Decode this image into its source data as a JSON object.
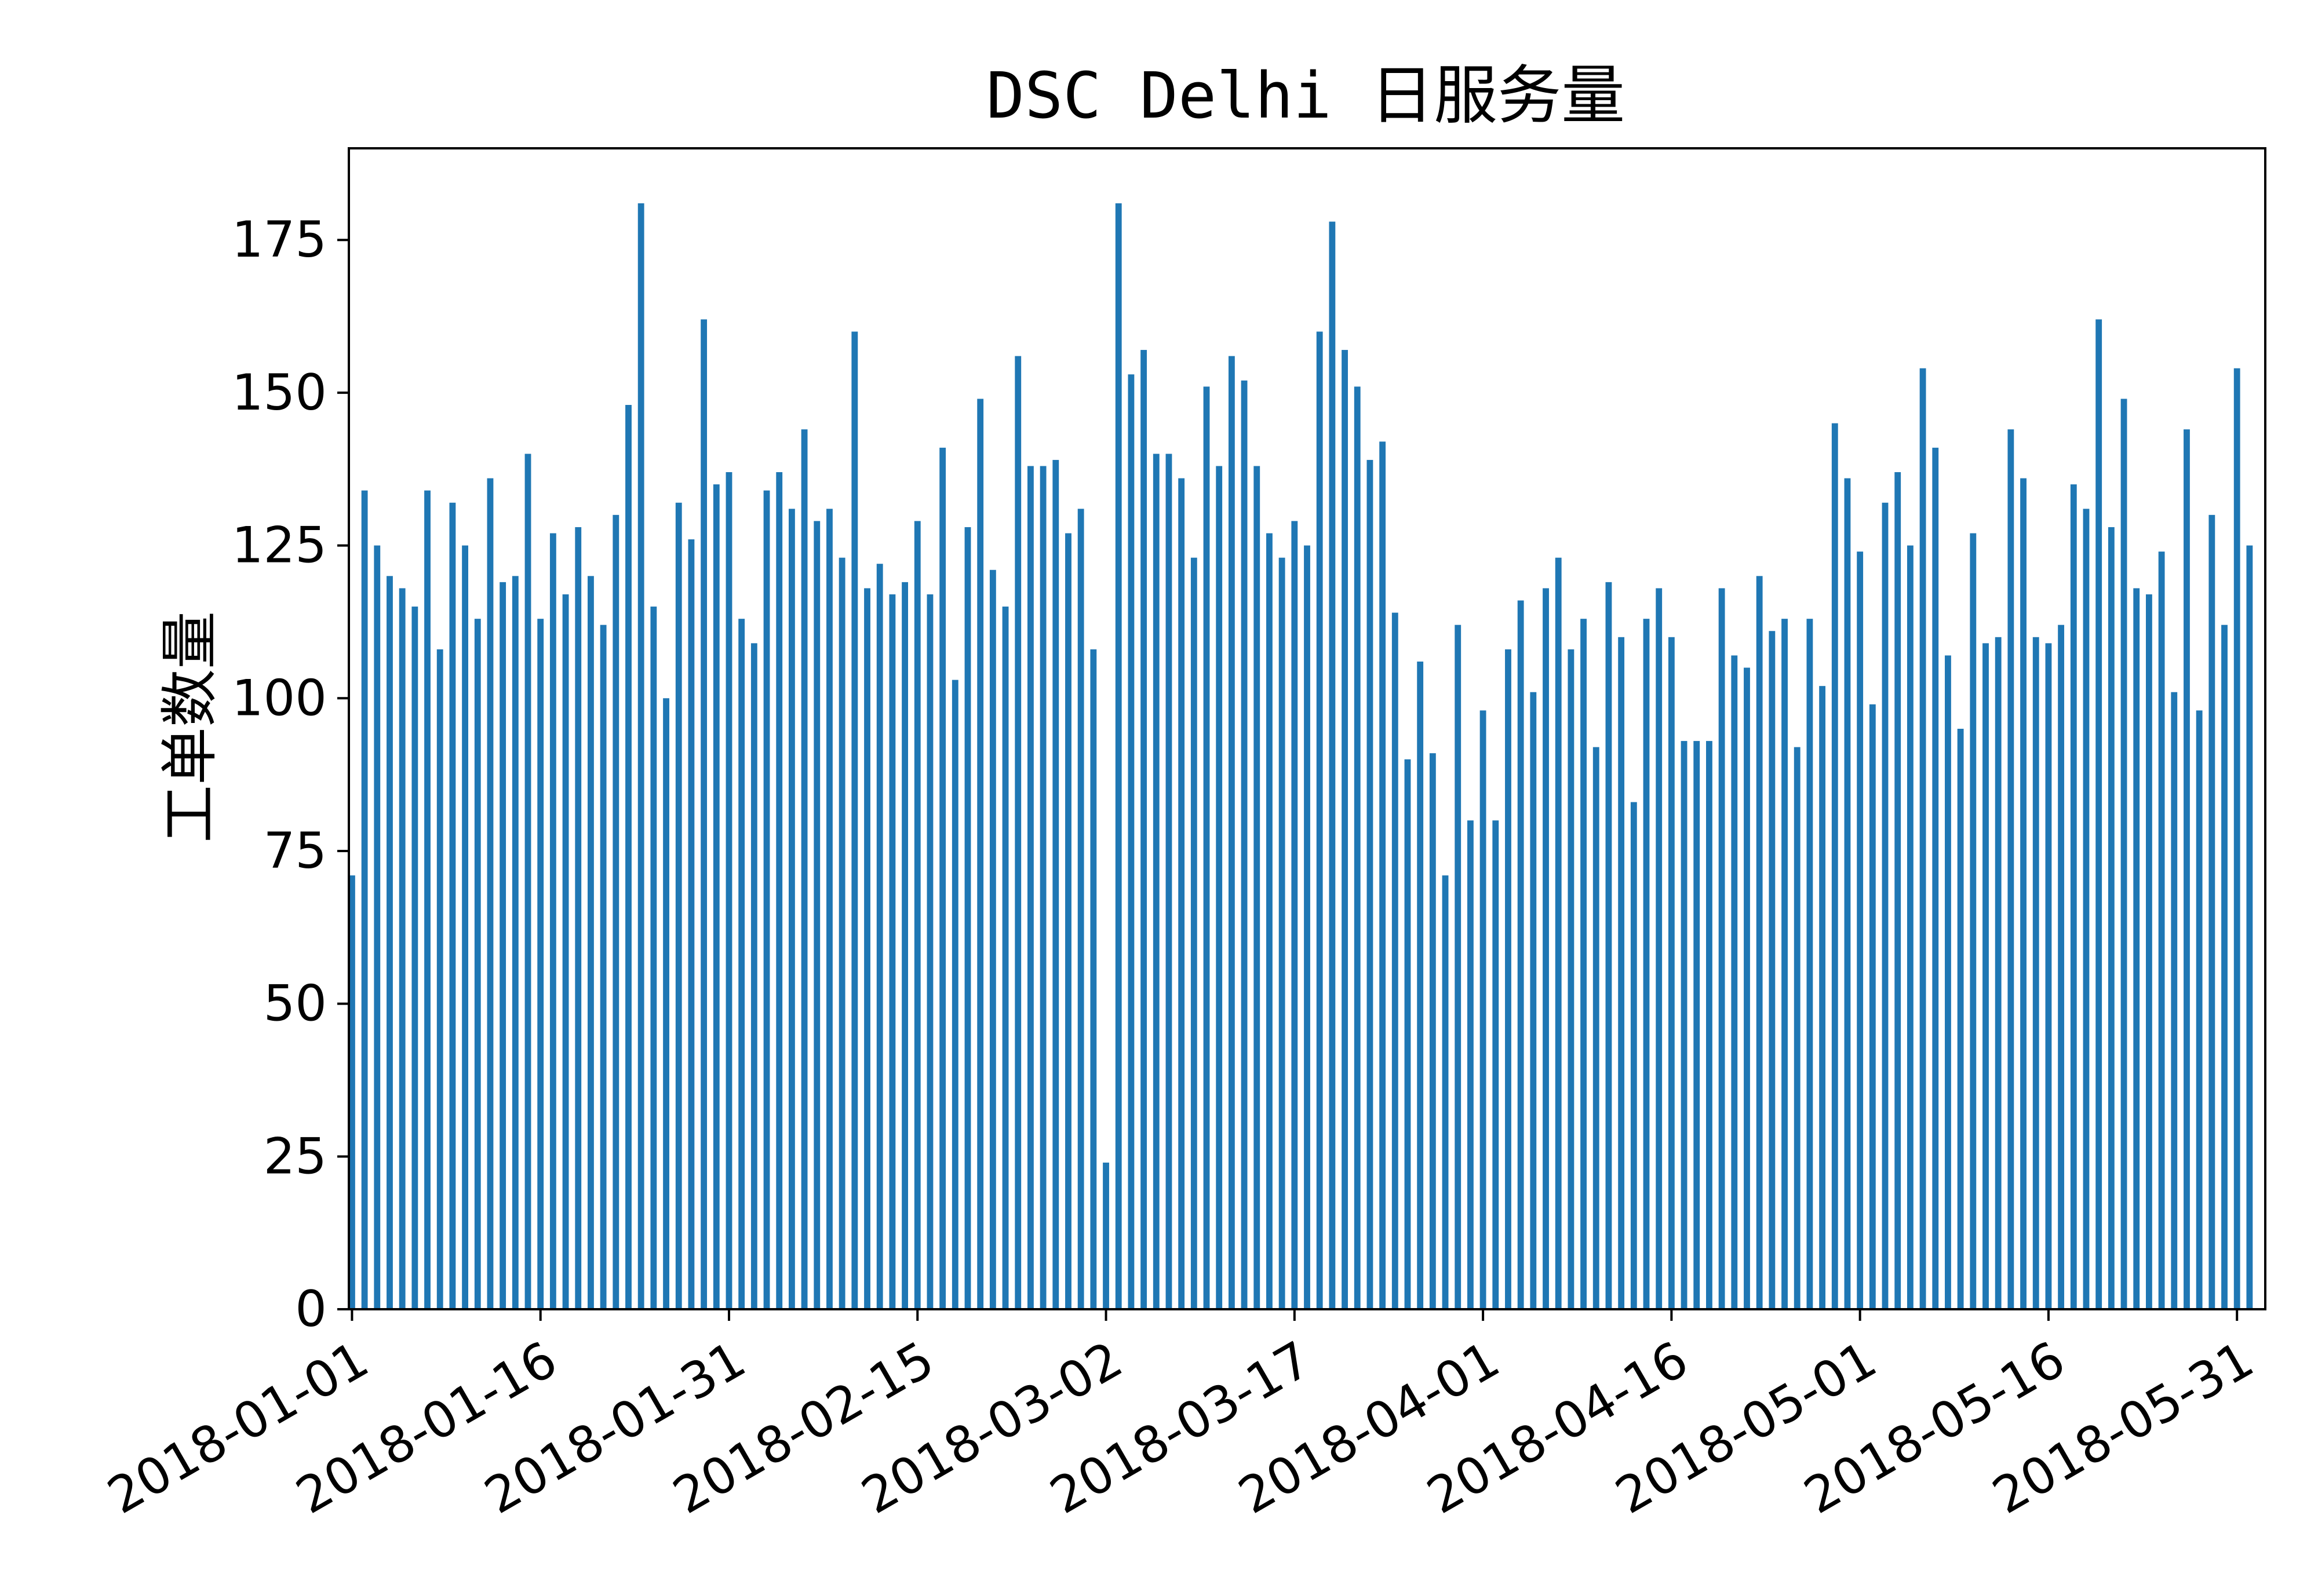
{
  "chart_data": {
    "type": "bar",
    "title": "DSC Delhi 日服务量",
    "xlabel": "",
    "ylabel": "工单数量",
    "ylim": [
      0,
      190
    ],
    "yticks": [
      0,
      25,
      50,
      75,
      100,
      125,
      150,
      175
    ],
    "x_start": "2018-01-01",
    "xtick_labels": [
      "2018-01-01",
      "2018-01-16",
      "2018-01-31",
      "2018-02-15",
      "2018-03-02",
      "2018-03-17",
      "2018-04-01",
      "2018-04-16",
      "2018-05-01",
      "2018-05-16",
      "2018-05-31"
    ],
    "grid": false,
    "legend": "none",
    "bar_color": "#1f77b4",
    "series": [
      {
        "values": [
          71,
          134,
          125,
          120,
          118,
          115,
          134,
          108,
          132,
          125,
          113,
          136,
          119,
          120,
          140,
          113,
          127,
          117,
          128,
          120,
          112,
          130,
          148,
          181,
          115,
          100,
          132,
          126,
          162,
          135,
          137,
          113,
          109,
          134,
          137,
          131,
          144,
          129,
          131,
          123,
          160,
          118,
          122,
          117,
          119,
          129,
          117,
          141,
          103,
          128,
          149,
          121,
          115,
          156,
          138,
          138,
          139,
          127,
          131,
          108,
          24,
          181,
          153,
          157,
          140,
          140,
          136,
          123,
          151,
          138,
          156,
          152,
          138,
          127,
          123,
          129,
          125,
          160,
          178,
          157,
          151,
          139,
          142,
          114,
          90,
          106,
          91,
          71,
          112,
          80,
          98,
          80,
          108,
          116,
          101,
          118,
          123,
          108,
          113,
          92,
          119,
          110,
          83,
          113,
          118,
          110,
          93,
          93,
          93,
          118,
          107,
          105,
          120,
          111,
          113,
          92,
          113,
          102,
          145,
          136,
          124,
          99,
          132,
          137,
          125,
          154,
          141,
          107,
          95,
          127,
          109,
          110,
          144,
          136,
          110,
          109,
          112,
          135,
          131,
          162,
          128,
          149,
          118,
          117,
          124,
          101,
          144,
          98,
          130,
          112,
          154,
          125
        ]
      }
    ]
  }
}
